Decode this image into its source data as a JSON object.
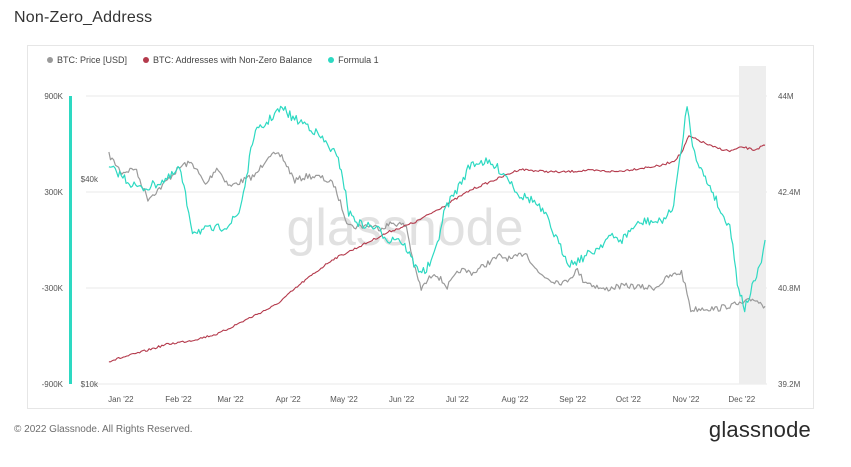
{
  "page": {
    "title": "Non-Zero_Address",
    "footer": "© 2022 Glassnode. All Rights Reserved.",
    "logo": "glassnode",
    "watermark": "glassnode"
  },
  "chart_data": {
    "type": "line",
    "title": "Non-Zero_Address",
    "legend_position": "top-left",
    "grid": {
      "horizontal": true,
      "vertical": false
    },
    "x_axis": {
      "type": "date",
      "range": [
        "2021-12-31",
        "2022-12-21"
      ],
      "ticks": [
        {
          "date": "2022-01-01",
          "label": "Jan '22"
        },
        {
          "date": "2022-02-01",
          "label": "Feb '22"
        },
        {
          "date": "2022-03-01",
          "label": "Mar '22"
        },
        {
          "date": "2022-04-01",
          "label": "Apr '22"
        },
        {
          "date": "2022-05-01",
          "label": "May '22"
        },
        {
          "date": "2022-06-01",
          "label": "Jun '22"
        },
        {
          "date": "2022-07-01",
          "label": "Jul '22"
        },
        {
          "date": "2022-08-01",
          "label": "Aug '22"
        },
        {
          "date": "2022-09-01",
          "label": "Sep '22"
        },
        {
          "date": "2022-10-01",
          "label": "Oct '22"
        },
        {
          "date": "2022-11-01",
          "label": "Nov '22"
        },
        {
          "date": "2022-12-01",
          "label": "Dec '22"
        }
      ]
    },
    "y_axes": {
      "formula": {
        "side": "left",
        "range": [
          -900000,
          900000
        ],
        "ticks": [
          {
            "value": 900000,
            "label": "900K"
          },
          {
            "value": 300000,
            "label": "300K"
          },
          {
            "value": -300000,
            "label": "-300K"
          },
          {
            "value": -900000,
            "label": "-900K"
          }
        ]
      },
      "price": {
        "side": "left-inner",
        "scale": "log",
        "range": [
          10000,
          70000
        ],
        "ticks": [
          {
            "value": 40000,
            "label": "$40k"
          },
          {
            "value": 10000,
            "label": "$10k"
          }
        ]
      },
      "addresses": {
        "side": "right",
        "range": [
          39200000,
          44000000
        ],
        "ticks": [
          {
            "value": 44000000,
            "label": "44M"
          },
          {
            "value": 42400000,
            "label": "42.4M"
          },
          {
            "value": 40800000,
            "label": "40.8M"
          },
          {
            "value": 39200000,
            "label": "39.2M"
          }
        ]
      }
    },
    "series": [
      {
        "name": "BTC: Price [USD]",
        "axis": "price",
        "color": "#9a9a9a",
        "points": [
          [
            "2022-01-01",
            47000
          ],
          [
            "2022-01-08",
            41700
          ],
          [
            "2022-01-15",
            43000
          ],
          [
            "2022-01-22",
            35000
          ],
          [
            "2022-01-29",
            37800
          ],
          [
            "2022-02-05",
            41600
          ],
          [
            "2022-02-10",
            44000
          ],
          [
            "2022-02-15",
            44500
          ],
          [
            "2022-02-22",
            38300
          ],
          [
            "2022-02-28",
            43200
          ],
          [
            "2022-03-07",
            38000
          ],
          [
            "2022-03-14",
            39500
          ],
          [
            "2022-03-21",
            41000
          ],
          [
            "2022-03-28",
            47100
          ],
          [
            "2022-04-04",
            46600
          ],
          [
            "2022-04-11",
            39500
          ],
          [
            "2022-04-18",
            40800
          ],
          [
            "2022-04-25",
            40400
          ],
          [
            "2022-05-02",
            38500
          ],
          [
            "2022-05-09",
            30100
          ],
          [
            "2022-05-12",
            28900
          ],
          [
            "2022-05-20",
            29200
          ],
          [
            "2022-05-27",
            28700
          ],
          [
            "2022-06-03",
            29700
          ],
          [
            "2022-06-10",
            29100
          ],
          [
            "2022-06-14",
            22300
          ],
          [
            "2022-06-18",
            19000
          ],
          [
            "2022-06-25",
            21300
          ],
          [
            "2022-07-02",
            19300
          ],
          [
            "2022-07-09",
            21600
          ],
          [
            "2022-07-16",
            21200
          ],
          [
            "2022-07-23",
            22500
          ],
          [
            "2022-07-30",
            23700
          ],
          [
            "2022-08-06",
            23200
          ],
          [
            "2022-08-13",
            24400
          ],
          [
            "2022-08-20",
            21200
          ],
          [
            "2022-08-27",
            20200
          ],
          [
            "2022-09-03",
            19800
          ],
          [
            "2022-09-10",
            21600
          ],
          [
            "2022-09-13",
            20200
          ],
          [
            "2022-09-17",
            19700
          ],
          [
            "2022-09-24",
            18900
          ],
          [
            "2022-10-01",
            19300
          ],
          [
            "2022-10-08",
            19400
          ],
          [
            "2022-10-15",
            19200
          ],
          [
            "2022-10-22",
            19200
          ],
          [
            "2022-10-29",
            20600
          ],
          [
            "2022-11-05",
            21300
          ],
          [
            "2022-11-08",
            18500
          ],
          [
            "2022-11-10",
            16500
          ],
          [
            "2022-11-17",
            16700
          ],
          [
            "2022-11-24",
            16600
          ],
          [
            "2022-12-01",
            17000
          ],
          [
            "2022-12-08",
            17200
          ],
          [
            "2022-12-14",
            17800
          ],
          [
            "2022-12-20",
            16900
          ]
        ]
      },
      {
        "name": "BTC: Addresses with Non-Zero Balance",
        "axis": "addresses",
        "color": "#b43a4c",
        "points": [
          [
            "2022-01-01",
            39580000
          ],
          [
            "2022-01-15",
            39700000
          ],
          [
            "2022-02-01",
            39860000
          ],
          [
            "2022-02-15",
            39930000
          ],
          [
            "2022-03-01",
            40040000
          ],
          [
            "2022-03-15",
            40260000
          ],
          [
            "2022-04-01",
            40520000
          ],
          [
            "2022-04-15",
            40890000
          ],
          [
            "2022-05-01",
            41270000
          ],
          [
            "2022-05-15",
            41480000
          ],
          [
            "2022-06-01",
            41740000
          ],
          [
            "2022-06-15",
            41900000
          ],
          [
            "2022-07-01",
            42180000
          ],
          [
            "2022-07-15",
            42440000
          ],
          [
            "2022-08-01",
            42660000
          ],
          [
            "2022-08-10",
            42780000
          ],
          [
            "2022-08-20",
            42750000
          ],
          [
            "2022-09-01",
            42730000
          ],
          [
            "2022-09-15",
            42760000
          ],
          [
            "2022-10-01",
            42740000
          ],
          [
            "2022-10-15",
            42800000
          ],
          [
            "2022-10-25",
            42840000
          ],
          [
            "2022-11-01",
            42920000
          ],
          [
            "2022-11-05",
            43050000
          ],
          [
            "2022-11-09",
            43330000
          ],
          [
            "2022-11-15",
            43250000
          ],
          [
            "2022-11-22",
            43150000
          ],
          [
            "2022-12-01",
            43080000
          ],
          [
            "2022-12-08",
            43150000
          ],
          [
            "2022-12-14",
            43100000
          ],
          [
            "2022-12-20",
            43180000
          ]
        ]
      },
      {
        "name": "Formula 1",
        "axis": "formula",
        "color": "#2dd9c2",
        "points": [
          [
            "2022-01-01",
            450000
          ],
          [
            "2022-01-06",
            420000
          ],
          [
            "2022-01-12",
            360000
          ],
          [
            "2022-01-18",
            320000
          ],
          [
            "2022-01-22",
            330000
          ],
          [
            "2022-01-28",
            360000
          ],
          [
            "2022-02-03",
            390000
          ],
          [
            "2022-02-08",
            450000
          ],
          [
            "2022-02-12",
            230000
          ],
          [
            "2022-02-15",
            60000
          ],
          [
            "2022-02-20",
            60000
          ],
          [
            "2022-02-28",
            70000
          ],
          [
            "2022-03-07",
            100000
          ],
          [
            "2022-03-12",
            170000
          ],
          [
            "2022-03-16",
            390000
          ],
          [
            "2022-03-20",
            660000
          ],
          [
            "2022-03-26",
            720000
          ],
          [
            "2022-04-01",
            800000
          ],
          [
            "2022-04-05",
            820000
          ],
          [
            "2022-04-10",
            760000
          ],
          [
            "2022-04-18",
            720000
          ],
          [
            "2022-04-25",
            640000
          ],
          [
            "2022-05-02",
            550000
          ],
          [
            "2022-05-06",
            450000
          ],
          [
            "2022-05-10",
            170000
          ],
          [
            "2022-05-16",
            100000
          ],
          [
            "2022-05-24",
            80000
          ],
          [
            "2022-06-01",
            0
          ],
          [
            "2022-06-05",
            20000
          ],
          [
            "2022-06-10",
            -50000
          ],
          [
            "2022-06-15",
            -170000
          ],
          [
            "2022-06-20",
            -200000
          ],
          [
            "2022-06-25",
            -100000
          ],
          [
            "2022-07-01",
            200000
          ],
          [
            "2022-07-08",
            330000
          ],
          [
            "2022-07-15",
            480000
          ],
          [
            "2022-07-22",
            490000
          ],
          [
            "2022-07-29",
            450000
          ],
          [
            "2022-08-03",
            400000
          ],
          [
            "2022-08-10",
            280000
          ],
          [
            "2022-08-17",
            250000
          ],
          [
            "2022-08-24",
            150000
          ],
          [
            "2022-09-01",
            -50000
          ],
          [
            "2022-09-06",
            -150000
          ],
          [
            "2022-09-13",
            -110000
          ],
          [
            "2022-09-20",
            -60000
          ],
          [
            "2022-09-27",
            20000
          ],
          [
            "2022-10-04",
            0
          ],
          [
            "2022-10-10",
            80000
          ],
          [
            "2022-10-17",
            120000
          ],
          [
            "2022-10-24",
            110000
          ],
          [
            "2022-10-31",
            180000
          ],
          [
            "2022-11-05",
            560000
          ],
          [
            "2022-11-08",
            860000
          ],
          [
            "2022-11-10",
            650000
          ],
          [
            "2022-11-13",
            520000
          ],
          [
            "2022-11-17",
            400000
          ],
          [
            "2022-11-22",
            300000
          ],
          [
            "2022-11-27",
            150000
          ],
          [
            "2022-12-01",
            100000
          ],
          [
            "2022-12-05",
            -260000
          ],
          [
            "2022-12-09",
            -430000
          ],
          [
            "2022-12-13",
            -300000
          ],
          [
            "2022-12-17",
            -180000
          ],
          [
            "2022-12-20",
            0
          ]
        ]
      }
    ]
  }
}
